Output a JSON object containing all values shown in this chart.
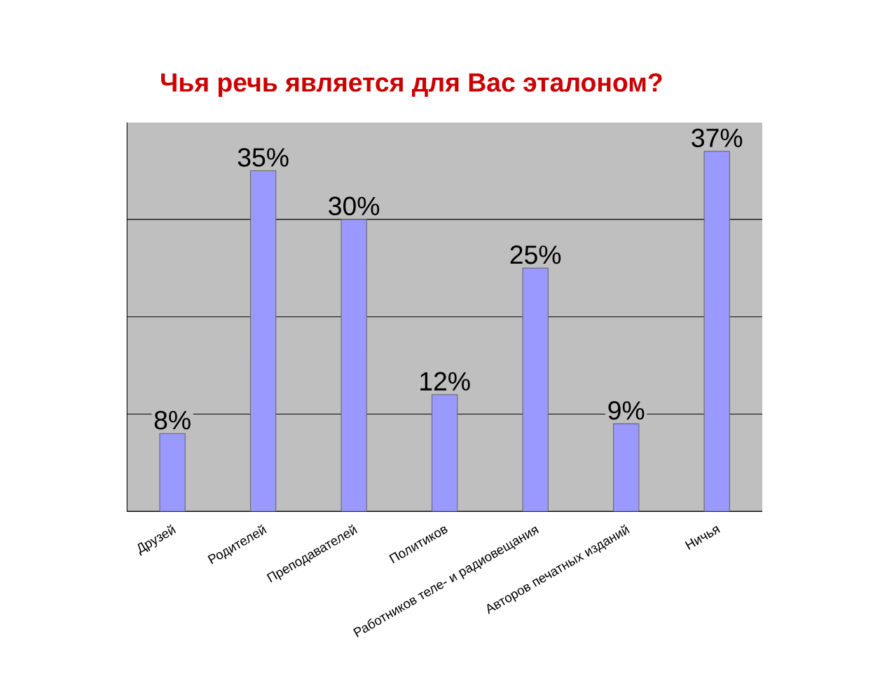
{
  "chart_data": {
    "type": "bar",
    "title": "Чья речь является для Вас эталоном?",
    "categories": [
      "Друзей",
      "Родителей",
      "Преподавателей",
      "Политиков",
      "Работников теле- и радиовещания",
      "Авторов печатных изданий",
      "Ничья"
    ],
    "values": [
      8,
      35,
      30,
      12,
      25,
      9,
      37
    ],
    "color": "#9999ff",
    "data_labels": true,
    "value_labels": [
      "8%",
      "35%",
      "30%",
      "12%",
      "25%",
      "9%",
      "37%"
    ],
    "tick_labels": "x",
    "grid": "y"
  }
}
